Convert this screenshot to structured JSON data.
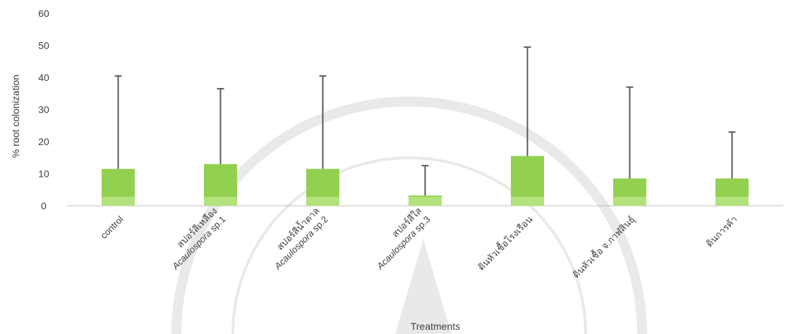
{
  "chart_data": {
    "type": "bar",
    "title": "",
    "xlabel": "Treatments",
    "ylabel": "% root colonization",
    "ylim": [
      0,
      60
    ],
    "yticks": [
      0,
      10,
      20,
      30,
      40,
      50,
      60
    ],
    "grid": false,
    "categories": [
      {
        "lines": [
          {
            "text": "control"
          }
        ]
      },
      {
        "lines": [
          {
            "text": "สปอร์สีเหลือง"
          },
          {
            "text": "Acaulospora",
            "italic": true,
            "suffix": " sp.1"
          }
        ]
      },
      {
        "lines": [
          {
            "text": "สปอร์สีน้ำตาล"
          },
          {
            "text": "Acaulospora",
            "italic": true,
            "suffix": " sp.2"
          }
        ]
      },
      {
        "lines": [
          {
            "text": "สปอร์สีใส"
          },
          {
            "text": "Acaulospora",
            "italic": true,
            "suffix": " sp.3"
          }
        ]
      },
      {
        "lines": [
          {
            "text": "ดินหัวเชื้อโรงเรือน"
          }
        ]
      },
      {
        "lines": [
          {
            "text": "ดินหัวเชื้อ จ.กาฬสินธุ์"
          }
        ]
      },
      {
        "lines": [
          {
            "text": "ดินการค้า"
          }
        ]
      }
    ],
    "values": [
      11.5,
      13,
      11.5,
      3.2,
      15.5,
      8.5,
      8.5
    ],
    "error_upper": [
      40.5,
      36.5,
      40.5,
      12.5,
      49.5,
      37,
      23
    ],
    "colors": {
      "bar": "#92d050",
      "bar_base": "#b2e27c",
      "error": "#595959",
      "text": "#404040"
    }
  }
}
